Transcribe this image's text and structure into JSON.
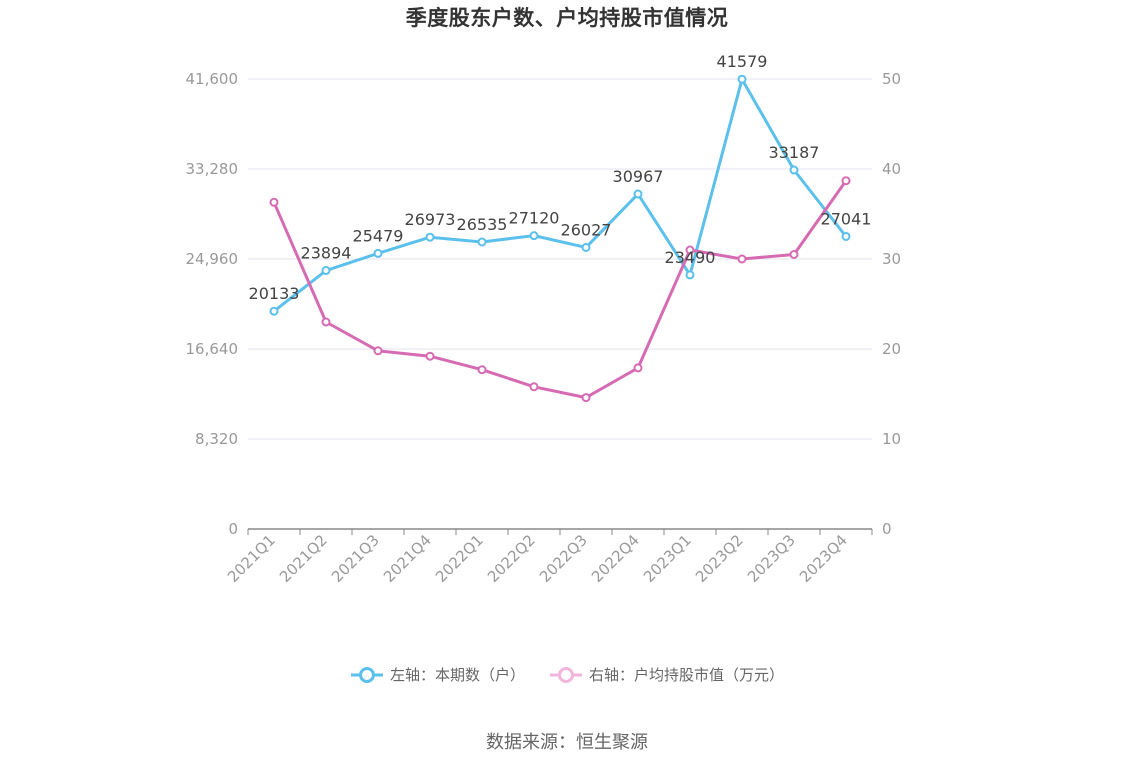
{
  "chart_data": {
    "type": "line",
    "title": "季度股东户数、户均持股市值情况",
    "categories": [
      "2021Q1",
      "2021Q2",
      "2021Q3",
      "2021Q4",
      "2022Q1",
      "2022Q2",
      "2022Q3",
      "2022Q4",
      "2023Q1",
      "2023Q2",
      "2023Q3",
      "2023Q4"
    ],
    "series": [
      {
        "name": "左轴：本期数（户）",
        "axis": "left",
        "color": "#5bc0eb",
        "values": [
          20133,
          23894,
          25479,
          26973,
          26535,
          27120,
          26027,
          30967,
          23490,
          41579,
          33187,
          27041
        ],
        "labels": [
          "20133",
          "23894",
          "25479",
          "26973",
          "26535",
          "27120",
          "26027",
          "30967",
          "23490",
          "41579",
          "33187",
          "27041"
        ]
      },
      {
        "name": "右轴：户均持股市值（万元）",
        "axis": "right",
        "color": "#d66bb3",
        "values": [
          36.3,
          23.0,
          19.8,
          19.2,
          17.7,
          15.8,
          14.6,
          17.9,
          31.0,
          30.0,
          30.5,
          38.7
        ]
      }
    ],
    "left_axis": {
      "ticks": [
        0,
        8320,
        16640,
        24960,
        33280,
        41600
      ],
      "tick_labels": [
        "0",
        "8,320",
        "16,640",
        "24,960",
        "33,280",
        "41,600"
      ],
      "min": 0,
      "max": 41600
    },
    "right_axis": {
      "ticks": [
        0,
        10,
        20,
        30,
        40,
        50
      ],
      "tick_labels": [
        "0",
        "10",
        "20",
        "30",
        "40",
        "50"
      ],
      "min": 0,
      "max": 50
    },
    "grid": true,
    "legend_position": "bottom"
  },
  "legend": {
    "left_label": "左轴：本期数（户）",
    "right_label": "右轴：户均持股市值（万元）"
  },
  "source": "数据来源：恒生聚源",
  "colors": {
    "left_series": "#5bc0eb",
    "right_series": "#d66bb3",
    "right_legend_light": "#f0b4dd",
    "grid": "#e0e4ef",
    "axis": "#999999"
  }
}
